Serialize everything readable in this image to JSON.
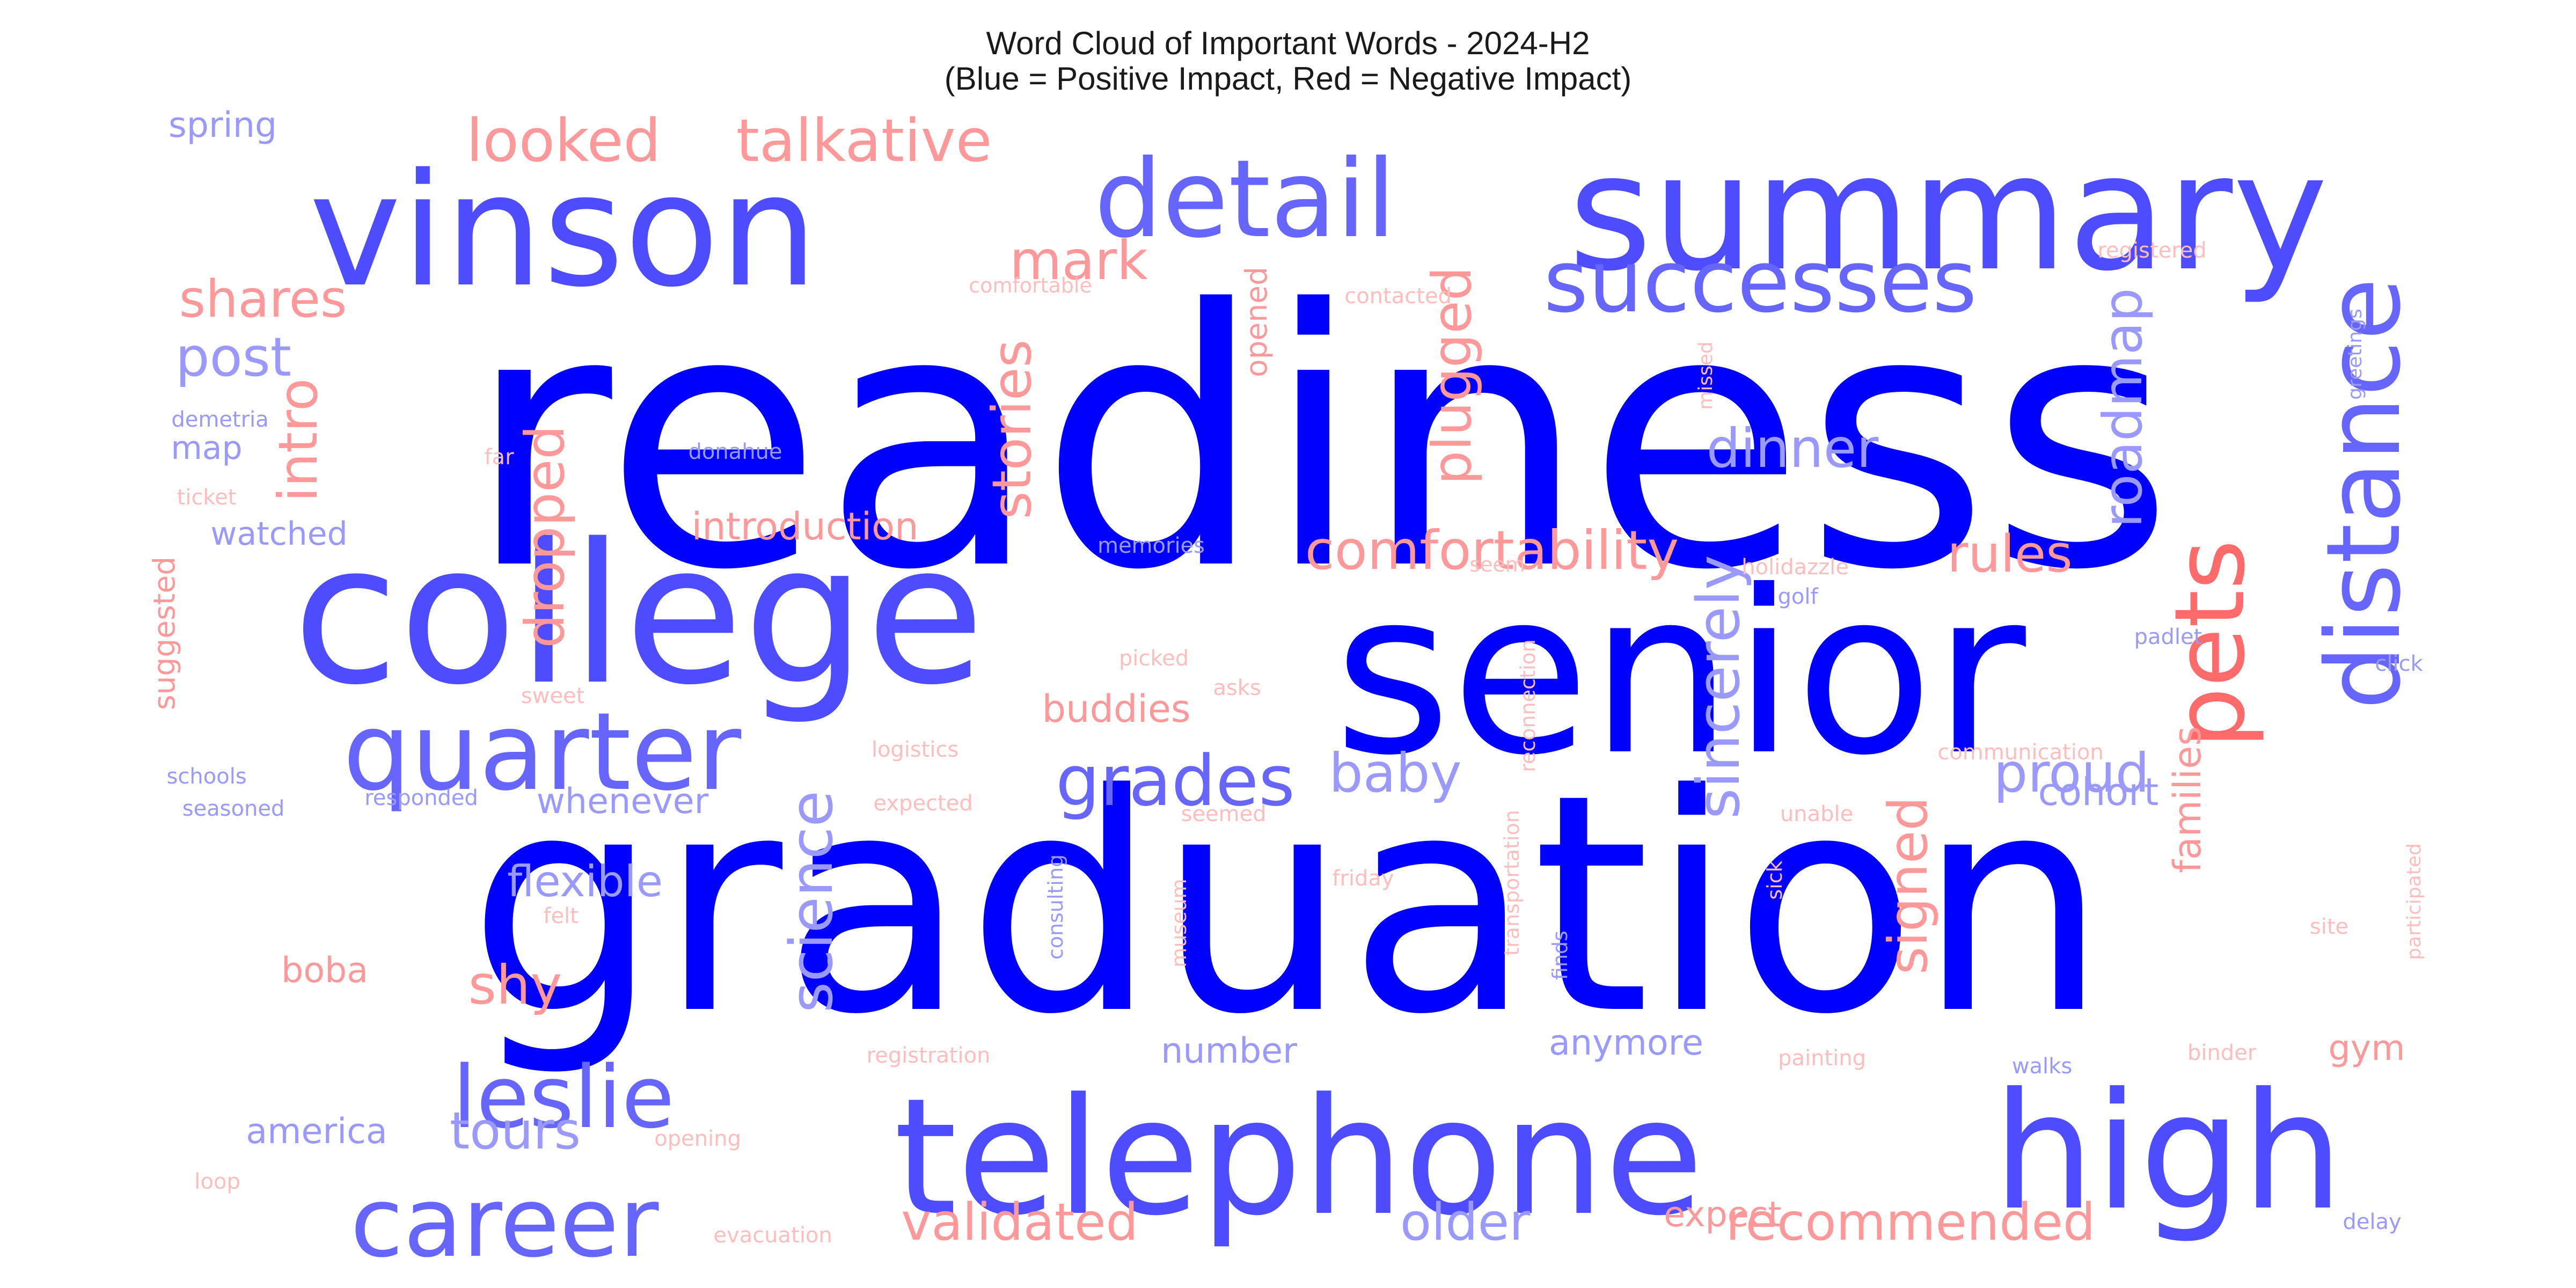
{
  "title": {
    "line1": "Word Cloud of Important Words - 2024-H2",
    "line2": "(Blue = Positive Impact, Red = Negative Impact)"
  },
  "colors": {
    "pos_strong": "#0000ff",
    "pos_mid": "#4d4dff",
    "pos_light": "#9999ff",
    "neg_strong": "#ff6b6b",
    "neg_mid": "#ff9999",
    "neg_light": "#ffbdbd"
  },
  "words": [
    {
      "text": "readiness",
      "impact": "positive"
    },
    {
      "text": "graduation",
      "impact": "positive"
    },
    {
      "text": "senior",
      "impact": "positive"
    },
    {
      "text": "college",
      "impact": "positive"
    },
    {
      "text": "summary",
      "impact": "positive"
    },
    {
      "text": "vinson",
      "impact": "positive"
    },
    {
      "text": "telephone",
      "impact": "positive"
    },
    {
      "text": "high",
      "impact": "positive"
    },
    {
      "text": "detail",
      "impact": "positive"
    },
    {
      "text": "quarter",
      "impact": "positive"
    },
    {
      "text": "leslie",
      "impact": "positive"
    },
    {
      "text": "career",
      "impact": "positive"
    },
    {
      "text": "successes",
      "impact": "positive"
    },
    {
      "text": "distance",
      "impact": "positive"
    },
    {
      "text": "pets",
      "impact": "negative"
    },
    {
      "text": "grades",
      "impact": "positive"
    },
    {
      "text": "looked",
      "impact": "negative"
    },
    {
      "text": "talkative",
      "impact": "negative"
    },
    {
      "text": "comfortability",
      "impact": "negative"
    },
    {
      "text": "stories",
      "impact": "negative"
    },
    {
      "text": "science",
      "impact": "positive"
    },
    {
      "text": "sincerely",
      "impact": "positive"
    },
    {
      "text": "dinner",
      "impact": "positive"
    },
    {
      "text": "roadmap",
      "impact": "positive"
    },
    {
      "text": "plugged",
      "impact": "negative"
    },
    {
      "text": "mark",
      "impact": "negative"
    },
    {
      "text": "intro",
      "impact": "negative"
    },
    {
      "text": "dropped",
      "impact": "negative"
    },
    {
      "text": "post",
      "impact": "positive"
    },
    {
      "text": "shares",
      "impact": "negative"
    },
    {
      "text": "rules",
      "impact": "negative"
    },
    {
      "text": "proud",
      "impact": "positive"
    },
    {
      "text": "signed",
      "impact": "negative"
    },
    {
      "text": "baby",
      "impact": "positive"
    },
    {
      "text": "shy",
      "impact": "negative"
    },
    {
      "text": "flexible",
      "impact": "positive"
    },
    {
      "text": "tours",
      "impact": "positive"
    },
    {
      "text": "validated",
      "impact": "negative"
    },
    {
      "text": "older",
      "impact": "positive"
    },
    {
      "text": "recommended",
      "impact": "negative"
    },
    {
      "text": "introduction",
      "impact": "negative"
    },
    {
      "text": "buddies",
      "impact": "negative"
    },
    {
      "text": "whenever",
      "impact": "positive"
    },
    {
      "text": "families",
      "impact": "negative"
    },
    {
      "text": "cohort",
      "impact": "positive"
    },
    {
      "text": "anymore",
      "impact": "positive"
    },
    {
      "text": "number",
      "impact": "positive"
    },
    {
      "text": "america",
      "impact": "positive"
    },
    {
      "text": "expect",
      "impact": "negative"
    },
    {
      "text": "gym",
      "impact": "negative"
    },
    {
      "text": "boba",
      "impact": "negative"
    },
    {
      "text": "spring",
      "impact": "positive"
    },
    {
      "text": "map",
      "impact": "positive"
    },
    {
      "text": "watched",
      "impact": "positive"
    },
    {
      "text": "suggested",
      "impact": "negative"
    },
    {
      "text": "opened",
      "impact": "negative"
    },
    {
      "text": "demetria",
      "impact": "positive"
    },
    {
      "text": "ticket",
      "impact": "negative"
    },
    {
      "text": "schools",
      "impact": "positive"
    },
    {
      "text": "seasoned",
      "impact": "positive"
    },
    {
      "text": "responded",
      "impact": "positive"
    },
    {
      "text": "logistics",
      "impact": "negative"
    },
    {
      "text": "expected",
      "impact": "negative"
    },
    {
      "text": "seemed",
      "impact": "negative"
    },
    {
      "text": "friday",
      "impact": "negative"
    },
    {
      "text": "felt",
      "impact": "negative"
    },
    {
      "text": "consulting",
      "impact": "positive"
    },
    {
      "text": "museum",
      "impact": "negative"
    },
    {
      "text": "transportation",
      "impact": "negative"
    },
    {
      "text": "finds",
      "impact": "positive"
    },
    {
      "text": "sick",
      "impact": "negative"
    },
    {
      "text": "reconnection",
      "impact": "negative"
    },
    {
      "text": "registration",
      "impact": "negative"
    },
    {
      "text": "painting",
      "impact": "negative"
    },
    {
      "text": "walks",
      "impact": "positive"
    },
    {
      "text": "binder",
      "impact": "negative"
    },
    {
      "text": "opening",
      "impact": "negative"
    },
    {
      "text": "loop",
      "impact": "negative"
    },
    {
      "text": "evacuation",
      "impact": "negative"
    },
    {
      "text": "delay",
      "impact": "positive"
    },
    {
      "text": "site",
      "impact": "negative"
    },
    {
      "text": "participated",
      "impact": "negative"
    },
    {
      "text": "unable",
      "impact": "negative"
    },
    {
      "text": "communication",
      "impact": "negative"
    },
    {
      "text": "click",
      "impact": "positive"
    },
    {
      "text": "padlet",
      "impact": "positive"
    },
    {
      "text": "golf",
      "impact": "positive"
    },
    {
      "text": "holidazzle",
      "impact": "negative"
    },
    {
      "text": "seem",
      "impact": "negative"
    },
    {
      "text": "memories",
      "impact": "positive"
    },
    {
      "text": "asks",
      "impact": "negative"
    },
    {
      "text": "picked",
      "impact": "negative"
    },
    {
      "text": "sweet",
      "impact": "negative"
    },
    {
      "text": "far",
      "impact": "negative"
    },
    {
      "text": "donahue",
      "impact": "positive"
    },
    {
      "text": "comfortable",
      "impact": "negative"
    },
    {
      "text": "contacted",
      "impact": "negative"
    },
    {
      "text": "missed",
      "impact": "negative"
    },
    {
      "text": "registered",
      "impact": "negative"
    },
    {
      "text": "greetings",
      "impact": "positive"
    }
  ]
}
